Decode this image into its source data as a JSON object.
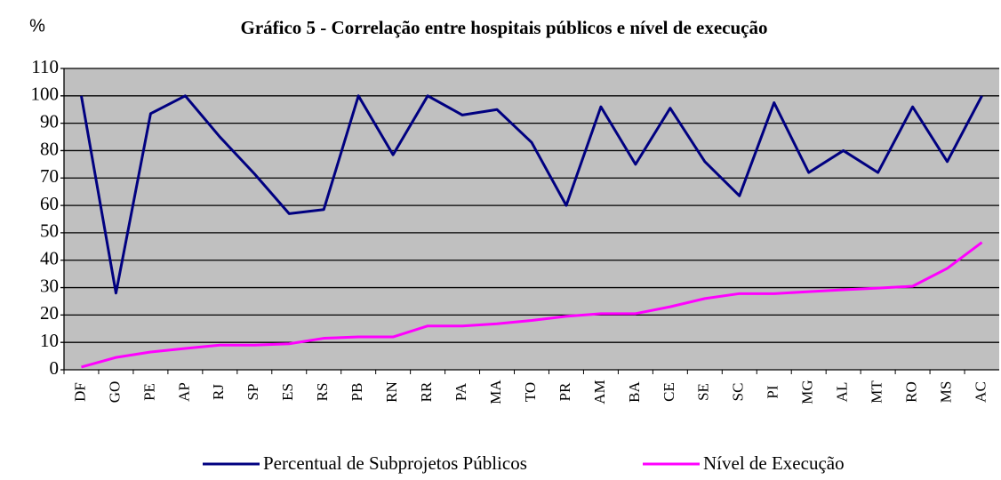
{
  "chart_data": {
    "type": "line",
    "title": "Gráfico 5 - Correlação entre hospitais públicos e nível de execução",
    "y_label": "%",
    "categories": [
      "DF",
      "GO",
      "PE",
      "AP",
      "RJ",
      "SP",
      "ES",
      "RS",
      "PB",
      "RN",
      "RR",
      "PA",
      "MA",
      "TO",
      "PR",
      "AM",
      "BA",
      "CE",
      "SE",
      "SC",
      "PI",
      "MG",
      "AL",
      "MT",
      "RO",
      "MS",
      "AC"
    ],
    "series": [
      {
        "name": "Percentual de Subprojetos Públicos",
        "color": "#000080",
        "values": [
          100,
          28,
          93.5,
          100,
          85,
          71.5,
          57,
          58.5,
          100,
          78.5,
          100,
          93,
          95,
          83,
          60,
          96,
          75,
          95.5,
          76,
          63.5,
          97.5,
          72,
          80,
          72,
          96,
          76,
          100
        ]
      },
      {
        "name": "Nível de Execução",
        "color": "#ff00ff",
        "values": [
          1,
          4.5,
          6.5,
          7.8,
          9,
          9,
          9.5,
          11.5,
          12,
          12,
          16,
          16,
          16.8,
          18,
          19.5,
          20.5,
          20.5,
          23,
          26,
          27.8,
          27.8,
          28.5,
          29.2,
          29.8,
          30.5,
          37,
          46.5
        ]
      }
    ],
    "ylim": [
      0,
      110
    ],
    "yticks": [
      0,
      10,
      20,
      30,
      40,
      50,
      60,
      70,
      80,
      90,
      100,
      110
    ],
    "grid": true
  }
}
